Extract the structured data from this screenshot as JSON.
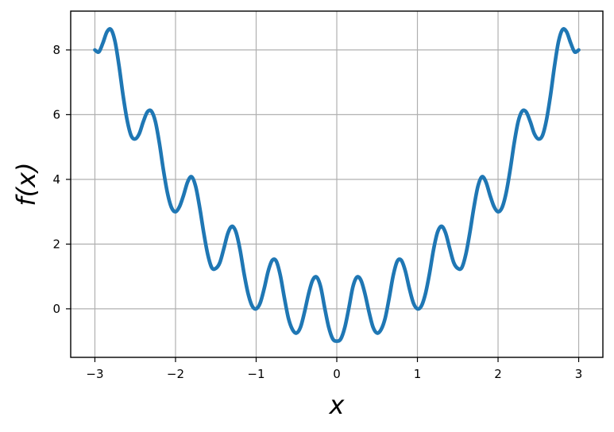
{
  "chart_data": {
    "type": "line",
    "title": "",
    "xlabel": "x",
    "ylabel": "f(x)",
    "xlim": [
      -3.3,
      3.3
    ],
    "ylim": [
      -1.5,
      9.2
    ],
    "grid": true,
    "legend": "none",
    "x_ticks": [
      -3,
      -2,
      -1,
      0,
      1,
      2,
      3
    ],
    "x_tick_labels": [
      "−3",
      "−2",
      "−1",
      "0",
      "1",
      "2",
      "3"
    ],
    "y_ticks": [
      0,
      2,
      4,
      6,
      8
    ],
    "y_tick_labels": [
      "0",
      "2",
      "4",
      "6",
      "8"
    ],
    "series": [
      {
        "color": "#1f77b4",
        "x": [
          -3.0,
          -2.95,
          -2.9,
          -2.85,
          -2.8,
          -2.75,
          -2.7,
          -2.65,
          -2.6,
          -2.55,
          -2.5,
          -2.45,
          -2.4,
          -2.35,
          -2.3,
          -2.25,
          -2.2,
          -2.15,
          -2.1,
          -2.05,
          -2.0,
          -1.95,
          -1.9,
          -1.85,
          -1.8,
          -1.75,
          -1.7,
          -1.65,
          -1.6,
          -1.55,
          -1.5,
          -1.45,
          -1.4,
          -1.35,
          -1.3,
          -1.25,
          -1.2,
          -1.15,
          -1.1,
          -1.05,
          -1.0,
          -0.95,
          -0.9,
          -0.85,
          -0.8,
          -0.75,
          -0.7,
          -0.65,
          -0.6,
          -0.55,
          -0.5,
          -0.45,
          -0.4,
          -0.35,
          -0.3,
          -0.25,
          -0.2,
          -0.15,
          -0.1,
          -0.05,
          0.0,
          0.05,
          0.1,
          0.15,
          0.2,
          0.25,
          0.3,
          0.35,
          0.4,
          0.45,
          0.5,
          0.55,
          0.6,
          0.65,
          0.7,
          0.75,
          0.8,
          0.85,
          0.9,
          0.95,
          1.0,
          1.05,
          1.1,
          1.15,
          1.2,
          1.25,
          1.3,
          1.35,
          1.4,
          1.45,
          1.5,
          1.55,
          1.6,
          1.65,
          1.7,
          1.75,
          1.8,
          1.85,
          1.9,
          1.95,
          2.0,
          2.05,
          2.1,
          2.15,
          2.2,
          2.25,
          2.3,
          2.35,
          2.4,
          2.45,
          2.5,
          2.55,
          2.6,
          2.65,
          2.7,
          2.75,
          2.8,
          2.85,
          2.9,
          2.95,
          3.0
        ],
        "y": [
          8.0,
          7.94,
          8.22,
          8.56,
          8.63,
          8.26,
          7.5,
          6.59,
          5.83,
          5.35,
          5.25,
          5.41,
          5.78,
          6.08,
          6.11,
          5.79,
          5.12,
          4.29,
          3.58,
          3.13,
          3.0,
          3.16,
          3.51,
          3.92,
          4.08,
          3.78,
          3.13,
          2.35,
          1.68,
          1.27,
          1.25,
          1.43,
          1.87,
          2.34,
          2.55,
          2.37,
          1.83,
          1.09,
          0.47,
          0.09,
          0.0,
          0.18,
          0.63,
          1.17,
          1.5,
          1.47,
          1.03,
          0.34,
          -0.29,
          -0.64,
          -0.75,
          -0.57,
          -0.1,
          0.46,
          0.88,
          0.98,
          0.68,
          0.03,
          -0.57,
          -0.93,
          -1.0,
          -0.93,
          -0.57,
          0.03,
          0.68,
          0.98,
          0.88,
          0.46,
          -0.1,
          -0.57,
          -0.75,
          -0.64,
          -0.29,
          0.34,
          1.03,
          1.47,
          1.5,
          1.17,
          0.63,
          0.18,
          0.0,
          0.09,
          0.47,
          1.09,
          1.83,
          2.37,
          2.55,
          2.34,
          1.87,
          1.43,
          1.25,
          1.27,
          1.68,
          2.35,
          3.13,
          3.78,
          4.08,
          3.92,
          3.51,
          3.16,
          3.0,
          3.13,
          3.58,
          4.29,
          5.12,
          5.79,
          6.11,
          6.08,
          5.78,
          5.41,
          5.25,
          5.35,
          5.83,
          6.59,
          7.5,
          8.26,
          8.63,
          8.56,
          8.22,
          7.94,
          8.0
        ]
      }
    ]
  }
}
